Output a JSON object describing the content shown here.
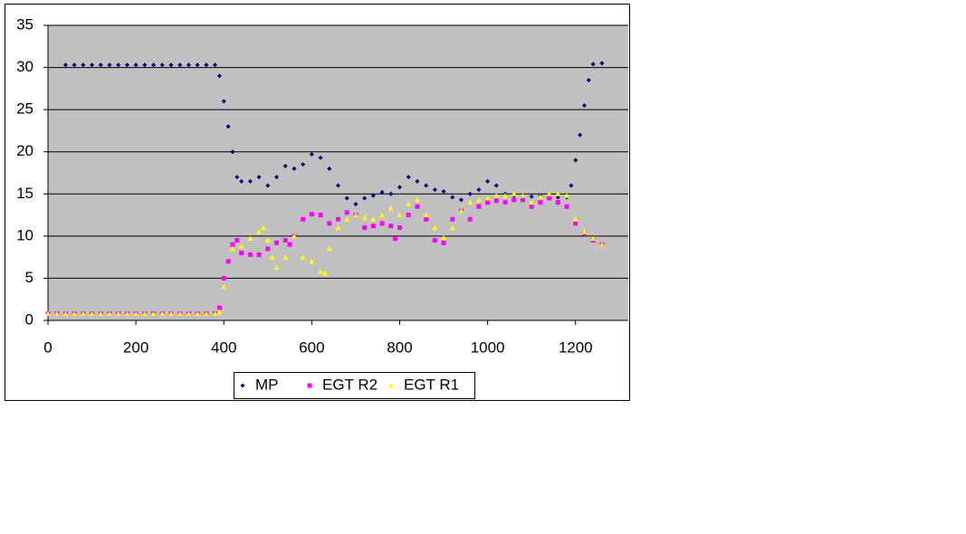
{
  "chart_data": {
    "type": "scatter",
    "xlim": [
      0,
      1320
    ],
    "xticks": [
      0,
      200,
      400,
      600,
      800,
      1000,
      1200
    ],
    "ylim": [
      0,
      35
    ],
    "yticks": [
      0,
      5,
      10,
      15,
      20,
      25,
      30,
      35
    ],
    "grid": true,
    "legend": "bottom",
    "series": [
      {
        "name": "MP",
        "color": "#000080",
        "marker": "diamond",
        "x": [
          40,
          60,
          80,
          100,
          120,
          140,
          160,
          180,
          200,
          220,
          240,
          260,
          280,
          300,
          320,
          340,
          360,
          380,
          390,
          400,
          410,
          420,
          430,
          440,
          460,
          480,
          500,
          520,
          540,
          560,
          580,
          600,
          620,
          640,
          660,
          680,
          700,
          720,
          740,
          760,
          780,
          800,
          820,
          840,
          860,
          880,
          900,
          920,
          940,
          960,
          980,
          1000,
          1020,
          1040,
          1060,
          1080,
          1100,
          1120,
          1140,
          1160,
          1180,
          1190,
          1200,
          1210,
          1220,
          1230,
          1240,
          1260
        ],
        "values": [
          30.3,
          30.3,
          30.3,
          30.3,
          30.3,
          30.3,
          30.3,
          30.3,
          30.3,
          30.3,
          30.3,
          30.3,
          30.3,
          30.3,
          30.3,
          30.3,
          30.3,
          30.3,
          29,
          26,
          23,
          20,
          17,
          16.5,
          16.5,
          17,
          16,
          17,
          18.3,
          18,
          18.5,
          19.7,
          19.3,
          18,
          16,
          14.5,
          13.8,
          14.5,
          14.8,
          15.2,
          15,
          15.8,
          17,
          16.5,
          16,
          15.5,
          15.3,
          14.6,
          14.3,
          15,
          15.5,
          16.5,
          16,
          15,
          14.8,
          14.7,
          14.7,
          14.8,
          14.8,
          14.6,
          14.6,
          16,
          19,
          22,
          25.5,
          28.5,
          30.4,
          30.5
        ]
      },
      {
        "name": "EGT R2",
        "color": "#ff00ff",
        "marker": "square",
        "x": [
          0,
          20,
          40,
          60,
          80,
          100,
          120,
          140,
          160,
          180,
          200,
          220,
          240,
          260,
          280,
          300,
          320,
          340,
          360,
          380,
          390,
          400,
          410,
          420,
          430,
          440,
          460,
          480,
          500,
          520,
          540,
          550,
          560,
          580,
          600,
          620,
          640,
          660,
          680,
          700,
          720,
          740,
          760,
          780,
          790,
          800,
          820,
          840,
          860,
          880,
          900,
          920,
          940,
          960,
          980,
          1000,
          1020,
          1040,
          1060,
          1080,
          1100,
          1120,
          1140,
          1160,
          1180,
          1200,
          1220,
          1240,
          1260
        ],
        "values": [
          0.8,
          0.8,
          0.8,
          0.8,
          0.8,
          0.8,
          0.8,
          0.8,
          0.8,
          0.8,
          0.8,
          0.8,
          0.8,
          0.8,
          0.8,
          0.8,
          0.8,
          0.8,
          0.8,
          0.8,
          1.5,
          5,
          7,
          9,
          9.5,
          8,
          7.8,
          7.8,
          8.5,
          9.2,
          9.5,
          9,
          10,
          12,
          12.6,
          12.5,
          11.5,
          12,
          12.8,
          12.5,
          11,
          11.2,
          11.5,
          11.2,
          9.7,
          11,
          12.5,
          13.5,
          12,
          9.5,
          9.2,
          12,
          13,
          12,
          13.5,
          14,
          14.2,
          14,
          14.3,
          14.3,
          13.5,
          14,
          14.5,
          14,
          13.5,
          11.5,
          10.3,
          9.5,
          9
        ]
      },
      {
        "name": "EGT R1",
        "color": "#ffff00",
        "marker": "triangle",
        "x": [
          0,
          20,
          40,
          60,
          80,
          100,
          120,
          140,
          160,
          180,
          200,
          220,
          240,
          260,
          280,
          300,
          320,
          340,
          360,
          380,
          390,
          400,
          420,
          440,
          460,
          480,
          490,
          500,
          510,
          520,
          540,
          560,
          580,
          600,
          620,
          630,
          640,
          660,
          680,
          700,
          720,
          740,
          760,
          780,
          800,
          820,
          840,
          860,
          880,
          900,
          920,
          940,
          960,
          980,
          1000,
          1020,
          1040,
          1060,
          1080,
          1100,
          1120,
          1140,
          1160,
          1180,
          1200,
          1220,
          1240,
          1260
        ],
        "values": [
          0.8,
          0.8,
          0.8,
          0.8,
          0.8,
          0.8,
          0.8,
          0.8,
          0.8,
          0.8,
          0.8,
          0.8,
          0.8,
          0.8,
          0.8,
          0.8,
          0.8,
          0.8,
          0.8,
          0.8,
          1,
          4,
          8.5,
          8.8,
          9.7,
          10.5,
          11,
          9.5,
          7.5,
          6.3,
          7.5,
          10,
          7.5,
          7,
          5.8,
          5.6,
          8.5,
          11,
          12,
          12.5,
          12.2,
          12,
          12.5,
          13.3,
          12.5,
          13.8,
          14.3,
          12.5,
          11,
          9.8,
          11,
          13,
          14,
          14.3,
          14.5,
          14.8,
          14.8,
          15,
          14.8,
          14,
          14.7,
          15,
          15,
          14.8,
          12,
          10.5,
          9.7,
          9
        ]
      }
    ]
  }
}
